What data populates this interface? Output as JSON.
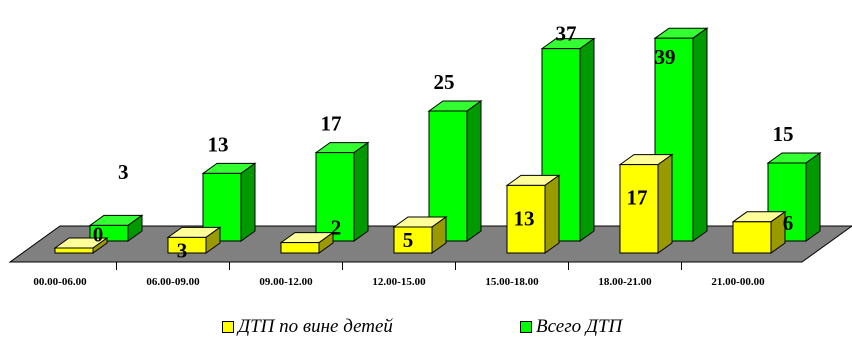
{
  "chart_data": {
    "type": "bar",
    "categories": [
      "00.00-06.00",
      "06.00-09.00",
      "09.00-12.00",
      "12.00-15.00",
      "15.00-18.00",
      "18.00-21.00",
      "21.00-00.00"
    ],
    "series": [
      {
        "name": "ДТП по вине детей",
        "values": [
          0,
          3,
          2,
          5,
          13,
          17,
          6
        ],
        "color": "#FFFF00"
      },
      {
        "name": "Всего ДТП",
        "values": [
          3,
          13,
          17,
          25,
          37,
          39,
          15
        ],
        "color": "#00FF00"
      }
    ],
    "ylim": [
      0,
      39
    ],
    "grid": false,
    "legend_position": "bottom"
  }
}
